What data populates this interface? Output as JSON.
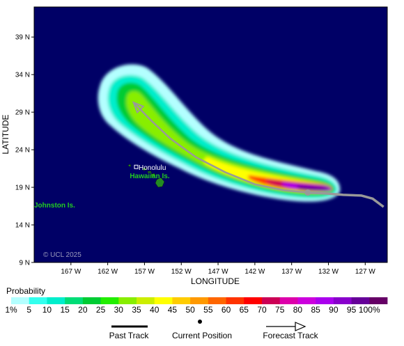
{
  "map": {
    "lon_range": [
      -172,
      -124
    ],
    "lat_range": [
      9,
      43
    ],
    "x_ticks": [
      {
        "lon": -167,
        "label": "167 W"
      },
      {
        "lon": -162,
        "label": "162 W"
      },
      {
        "lon": -157,
        "label": "157 W"
      },
      {
        "lon": -152,
        "label": "152 W"
      },
      {
        "lon": -147,
        "label": "147 W"
      },
      {
        "lon": -142,
        "label": "142 W"
      },
      {
        "lon": -137,
        "label": "137 W"
      },
      {
        "lon": -132,
        "label": "132 W"
      },
      {
        "lon": -127,
        "label": "127 W"
      }
    ],
    "y_ticks": [
      {
        "lat": 39,
        "label": "39 N"
      },
      {
        "lat": 34,
        "label": "34 N"
      },
      {
        "lat": 29,
        "label": "29 N"
      },
      {
        "lat": 24,
        "label": "24 N"
      },
      {
        "lat": 19,
        "label": "19 N"
      },
      {
        "lat": 14,
        "label": "14 N"
      },
      {
        "lat": 9,
        "label": "9 N"
      }
    ],
    "xlabel": "LONGITUDE",
    "ylabel": "LATITUDE",
    "ocean_color": "#000066",
    "copyright": "© UCL 2025",
    "place_labels": [
      {
        "text": "Honolulu",
        "lon": -157.8,
        "lat": 21.3,
        "color": "#ffffff"
      },
      {
        "text": "Hawaiian Is.",
        "lon": -159,
        "lat": 20.2,
        "color": "#22cc22"
      },
      {
        "text": "Johnston Is.",
        "lon": -172,
        "lat": 16.3,
        "color": "#22cc22"
      }
    ],
    "past_track": [
      [
        -134.8,
        18.3
      ],
      [
        -132.5,
        18.2
      ],
      [
        -130,
        18.0
      ],
      [
        -127.5,
        17.9
      ],
      [
        -126,
        17.5
      ],
      [
        -124.5,
        16.4
      ]
    ],
    "current_position": [
      -134.8,
      18.3
    ],
    "forecast_track": [
      [
        -134.8,
        18.3
      ],
      [
        -138,
        18.6
      ],
      [
        -142,
        19.4
      ],
      [
        -146,
        21.0
      ],
      [
        -150,
        23.0
      ],
      [
        -153.5,
        25.5
      ],
      [
        -156,
        27.8
      ],
      [
        -158.5,
        30.3
      ]
    ],
    "land_color": "#228b22"
  },
  "legend": {
    "title": "Probability",
    "labels": [
      "1%",
      "5",
      "10",
      "15",
      "20",
      "25",
      "30",
      "35",
      "40",
      "45",
      "50",
      "55",
      "60",
      "65",
      "70",
      "75",
      "80",
      "85",
      "90",
      "95",
      "100%"
    ],
    "colors": [
      "#b3ffff",
      "#33ffee",
      "#00eecc",
      "#00dd77",
      "#00cc33",
      "#22ee00",
      "#88ee00",
      "#ccee00",
      "#ffff00",
      "#ffcc00",
      "#ff9900",
      "#ff6600",
      "#ff3300",
      "#ff0000",
      "#cc0055",
      "#dd00aa",
      "#cc00dd",
      "#aa00ee",
      "#8800cc",
      "#660099",
      "#660066"
    ]
  },
  "key": {
    "past_track": "Past Track",
    "current_position": "Current Position",
    "forecast_track": "Forecast Track"
  }
}
